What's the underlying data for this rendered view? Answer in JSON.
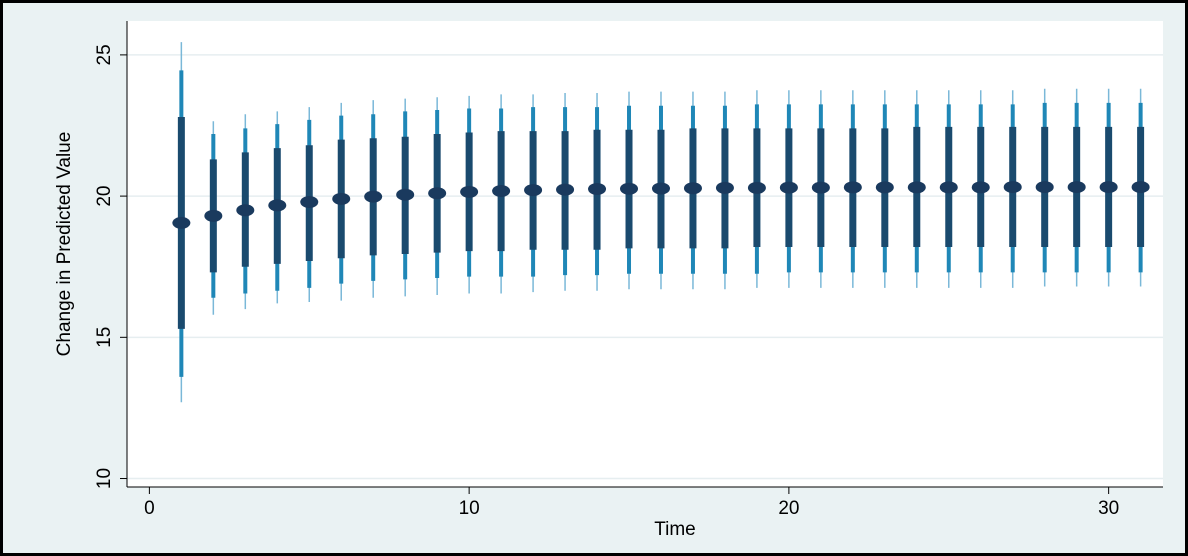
{
  "chart_data": {
    "type": "scatter",
    "title": "",
    "xlabel": "Time",
    "ylabel": "Change in Predicted Value",
    "xlim": [
      -0.7,
      31.7
    ],
    "ylim": [
      9.7,
      26.2
    ],
    "xticks": [
      0,
      10,
      20,
      30
    ],
    "yticks": [
      10,
      15,
      20,
      25
    ],
    "grid": true,
    "legend": "none",
    "colors": {
      "background": "#eaf2f3",
      "plot_background": "#ffffff",
      "point": "#1a3a5e",
      "ci_inner": "#1a4a6e",
      "ci_middle": "#1f87b7",
      "ci_outer": "#7ab8d8",
      "grid": "#e6eef0"
    },
    "series": [
      {
        "x": [
          1,
          2,
          3,
          4,
          5,
          6,
          7,
          8,
          9,
          10,
          11,
          12,
          13,
          14,
          15,
          16,
          17,
          18,
          19,
          20,
          21,
          22,
          23,
          24,
          25,
          26,
          27,
          28,
          29,
          30,
          31
        ],
        "y": [
          19.05,
          19.3,
          19.5,
          19.67,
          19.79,
          19.9,
          19.98,
          20.05,
          20.1,
          20.15,
          20.18,
          20.21,
          20.23,
          20.25,
          20.26,
          20.27,
          20.28,
          20.29,
          20.29,
          20.3,
          20.3,
          20.31,
          20.31,
          20.31,
          20.31,
          20.31,
          20.32,
          20.32,
          20.32,
          20.32,
          20.32
        ],
        "ci_inner": [
          [
            15.3,
            22.8
          ],
          [
            17.3,
            21.3
          ],
          [
            17.5,
            21.55
          ],
          [
            17.6,
            21.7
          ],
          [
            17.7,
            21.8
          ],
          [
            17.8,
            22.0
          ],
          [
            17.9,
            22.05
          ],
          [
            17.95,
            22.1
          ],
          [
            18.0,
            22.2
          ],
          [
            18.05,
            22.25
          ],
          [
            18.05,
            22.3
          ],
          [
            18.1,
            22.3
          ],
          [
            18.1,
            22.3
          ],
          [
            18.1,
            22.35
          ],
          [
            18.15,
            22.35
          ],
          [
            18.15,
            22.35
          ],
          [
            18.15,
            22.4
          ],
          [
            18.15,
            22.4
          ],
          [
            18.2,
            22.4
          ],
          [
            18.2,
            22.4
          ],
          [
            18.2,
            22.4
          ],
          [
            18.2,
            22.4
          ],
          [
            18.2,
            22.4
          ],
          [
            18.2,
            22.45
          ],
          [
            18.2,
            22.45
          ],
          [
            18.2,
            22.45
          ],
          [
            18.2,
            22.45
          ],
          [
            18.2,
            22.45
          ],
          [
            18.2,
            22.45
          ],
          [
            18.2,
            22.45
          ],
          [
            18.2,
            22.45
          ]
        ],
        "ci_middle": [
          [
            13.6,
            24.45
          ],
          [
            16.4,
            22.2
          ],
          [
            16.55,
            22.4
          ],
          [
            16.65,
            22.55
          ],
          [
            16.75,
            22.7
          ],
          [
            16.9,
            22.85
          ],
          [
            17.0,
            22.9
          ],
          [
            17.05,
            23.0
          ],
          [
            17.1,
            23.05
          ],
          [
            17.15,
            23.1
          ],
          [
            17.15,
            23.1
          ],
          [
            17.15,
            23.15
          ],
          [
            17.2,
            23.15
          ],
          [
            17.2,
            23.15
          ],
          [
            17.25,
            23.2
          ],
          [
            17.25,
            23.2
          ],
          [
            17.25,
            23.2
          ],
          [
            17.25,
            23.2
          ],
          [
            17.25,
            23.25
          ],
          [
            17.3,
            23.25
          ],
          [
            17.3,
            23.25
          ],
          [
            17.3,
            23.25
          ],
          [
            17.3,
            23.25
          ],
          [
            17.3,
            23.25
          ],
          [
            17.3,
            23.25
          ],
          [
            17.3,
            23.25
          ],
          [
            17.3,
            23.25
          ],
          [
            17.3,
            23.3
          ],
          [
            17.3,
            23.3
          ],
          [
            17.3,
            23.3
          ],
          [
            17.3,
            23.3
          ]
        ],
        "ci_outer": [
          [
            12.7,
            25.45
          ],
          [
            15.8,
            22.65
          ],
          [
            16.0,
            22.9
          ],
          [
            16.2,
            23.0
          ],
          [
            16.25,
            23.15
          ],
          [
            16.3,
            23.3
          ],
          [
            16.4,
            23.4
          ],
          [
            16.45,
            23.45
          ],
          [
            16.5,
            23.5
          ],
          [
            16.55,
            23.55
          ],
          [
            16.55,
            23.6
          ],
          [
            16.6,
            23.6
          ],
          [
            16.65,
            23.65
          ],
          [
            16.65,
            23.65
          ],
          [
            16.7,
            23.7
          ],
          [
            16.7,
            23.7
          ],
          [
            16.7,
            23.7
          ],
          [
            16.7,
            23.7
          ],
          [
            16.75,
            23.75
          ],
          [
            16.75,
            23.75
          ],
          [
            16.75,
            23.75
          ],
          [
            16.75,
            23.75
          ],
          [
            16.75,
            23.75
          ],
          [
            16.75,
            23.75
          ],
          [
            16.75,
            23.75
          ],
          [
            16.75,
            23.75
          ],
          [
            16.75,
            23.75
          ],
          [
            16.8,
            23.8
          ],
          [
            16.8,
            23.8
          ],
          [
            16.8,
            23.8
          ],
          [
            16.8,
            23.8
          ]
        ]
      }
    ]
  }
}
